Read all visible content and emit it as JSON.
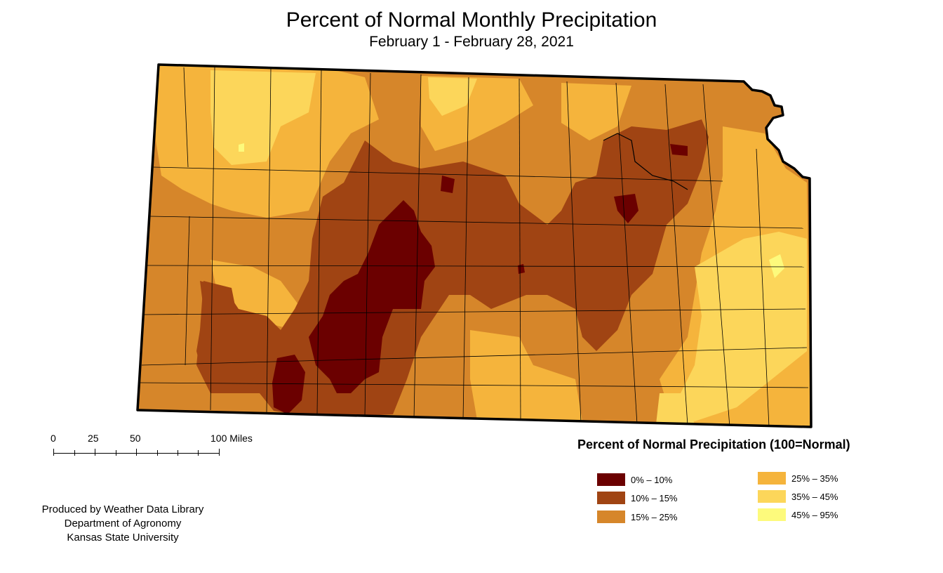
{
  "title": "Percent of Normal Monthly Precipitation",
  "subtitle": "February 1 - February 28, 2021",
  "scale_bar": {
    "labels": [
      "0",
      "25",
      "50",
      "100 Miles"
    ]
  },
  "legend": {
    "title": "Percent of Normal  Precipitation (100=Normal)",
    "items": [
      {
        "label": "0% – 10%",
        "color": "#6b0000"
      },
      {
        "label": "10% – 15%",
        "color": "#a04413"
      },
      {
        "label": "15% – 25%",
        "color": "#d6862a"
      },
      {
        "label": "25% – 35%",
        "color": "#f5b43c"
      },
      {
        "label": "35% – 45%",
        "color": "#fcd65a"
      },
      {
        "label": "45% – 95%",
        "color": "#fdfa7c"
      }
    ]
  },
  "credits": {
    "line1": "Produced by Weather Data Library",
    "line2": "Department of Agronomy",
    "line3": "Kansas State University"
  }
}
